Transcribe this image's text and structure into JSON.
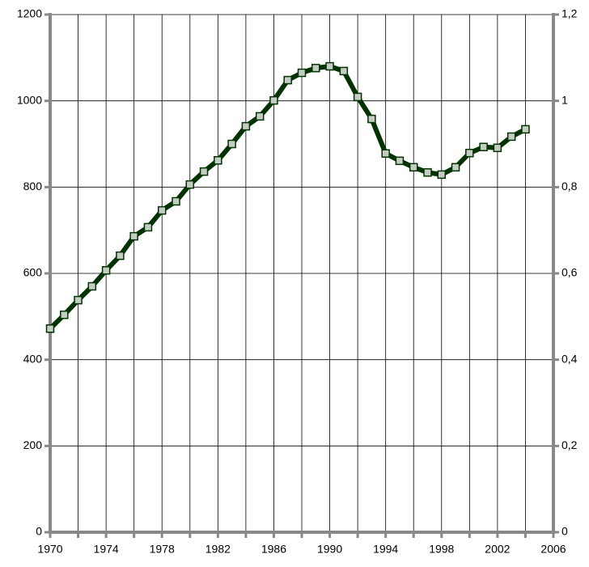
{
  "chart_data": {
    "type": "line",
    "x": [
      1970,
      1971,
      1972,
      1973,
      1974,
      1975,
      1976,
      1977,
      1978,
      1979,
      1980,
      1981,
      1982,
      1983,
      1984,
      1985,
      1986,
      1987,
      1988,
      1989,
      1990,
      1991,
      1992,
      1993,
      1994,
      1995,
      1996,
      1997,
      1998,
      1999,
      2000,
      2001,
      2002,
      2003,
      2004
    ],
    "series": [
      {
        "color": "#003300",
        "marker_color": "#c4ccc4",
        "values": [
          472,
          504,
          538,
          570,
          607,
          641,
          686,
          707,
          746,
          767,
          806,
          836,
          862,
          900,
          941,
          964,
          1001,
          1048,
          1065,
          1076,
          1080,
          1069,
          1009,
          958,
          878,
          861,
          846,
          834,
          829,
          846,
          879,
          893,
          891,
          917,
          934
        ]
      }
    ],
    "xlim": [
      1970,
      2006
    ],
    "xticks": [
      1970,
      1974,
      1978,
      1982,
      1986,
      1990,
      1994,
      1998,
      2002,
      2006
    ],
    "xminor_ticks": [
      1972,
      1976,
      1980,
      1984,
      1988,
      1992,
      1996,
      2000,
      2004
    ],
    "ylim": [
      0,
      1200
    ],
    "yticks": [
      0,
      200,
      400,
      600,
      800,
      1000,
      1200
    ],
    "y2lim": [
      0,
      1.2
    ],
    "y2ticks": [
      0,
      {
        "value": 0.2,
        "label": "0,2"
      },
      {
        "value": 0.4,
        "label": "0,4"
      },
      {
        "value": 0.6,
        "label": "0,6"
      },
      {
        "value": 0.8,
        "label": "0,8"
      },
      1,
      {
        "value": 1.2,
        "label": "1,2"
      }
    ],
    "grid": true
  }
}
